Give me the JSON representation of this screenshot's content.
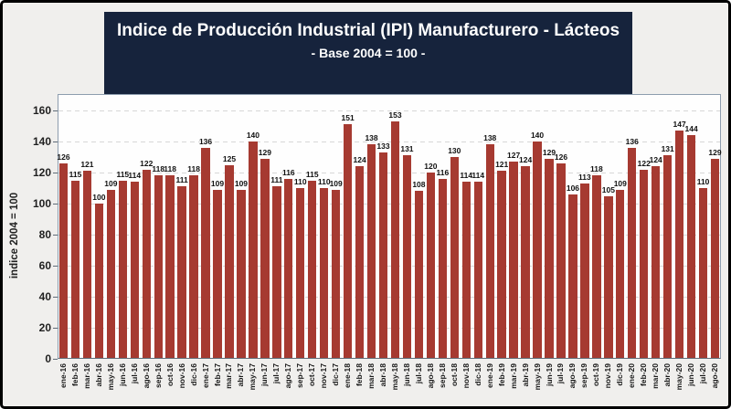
{
  "window": {
    "background": "#f0efed",
    "border_color": "#000000"
  },
  "header": {
    "title": "Indice de Producción Industrial (IPI) Manufacturero - Lácteos",
    "subtitle": "- Base 2004 = 100 -",
    "background": "#16233c",
    "text_color": "#ffffff"
  },
  "chart_data": {
    "type": "bar",
    "title": "Indice de Producción Industrial (IPI) Manufacturero - Lácteos",
    "subtitle": "- Base 2004 = 100 -",
    "xlabel": "",
    "ylabel": "indice 2004 = 100",
    "ylim": [
      0,
      160
    ],
    "yticks": [
      0,
      20,
      40,
      60,
      80,
      100,
      120,
      140,
      160
    ],
    "grid": "horizontal-dashed",
    "legend": "none",
    "bar_color": "#a63a31",
    "data_labels": true,
    "categories": [
      "ene-16",
      "feb-16",
      "mar-16",
      "abr-16",
      "may-16",
      "jun-16",
      "jul-16",
      "ago-16",
      "sep-16",
      "oct-16",
      "nov-16",
      "dic-16",
      "ene-17",
      "feb-17",
      "mar-17",
      "abr-17",
      "may-17",
      "jun-17",
      "jul-17",
      "ago-17",
      "sep-17",
      "oct-17",
      "nov-17",
      "dic-17",
      "ene-18",
      "feb-18",
      "mar-18",
      "abr-18",
      "may-18",
      "jun-18",
      "jul-18",
      "ago-18",
      "sep-18",
      "oct-18",
      "nov-18",
      "dic-18",
      "ene-19",
      "feb-19",
      "mar-19",
      "abr-19",
      "may-19",
      "jun-19",
      "jul-19",
      "ago-19",
      "sep-19",
      "oct-19",
      "nov-19",
      "dic-19",
      "ene-20",
      "feb-20",
      "mar-20",
      "abr-20",
      "may-20",
      "jun-20",
      "jul-20",
      "ago-20"
    ],
    "values": [
      126,
      115,
      121,
      100,
      109,
      115,
      114,
      122,
      118,
      118,
      111,
      118,
      136,
      109,
      125,
      109,
      140,
      129,
      111,
      116,
      110,
      115,
      110,
      109,
      151,
      124,
      138,
      133,
      153,
      131,
      108,
      120,
      116,
      130,
      114,
      114,
      138,
      121,
      127,
      124,
      140,
      129,
      126,
      106,
      113,
      118,
      105,
      109,
      136,
      122,
      124,
      131,
      147,
      144,
      110,
      129
    ]
  }
}
